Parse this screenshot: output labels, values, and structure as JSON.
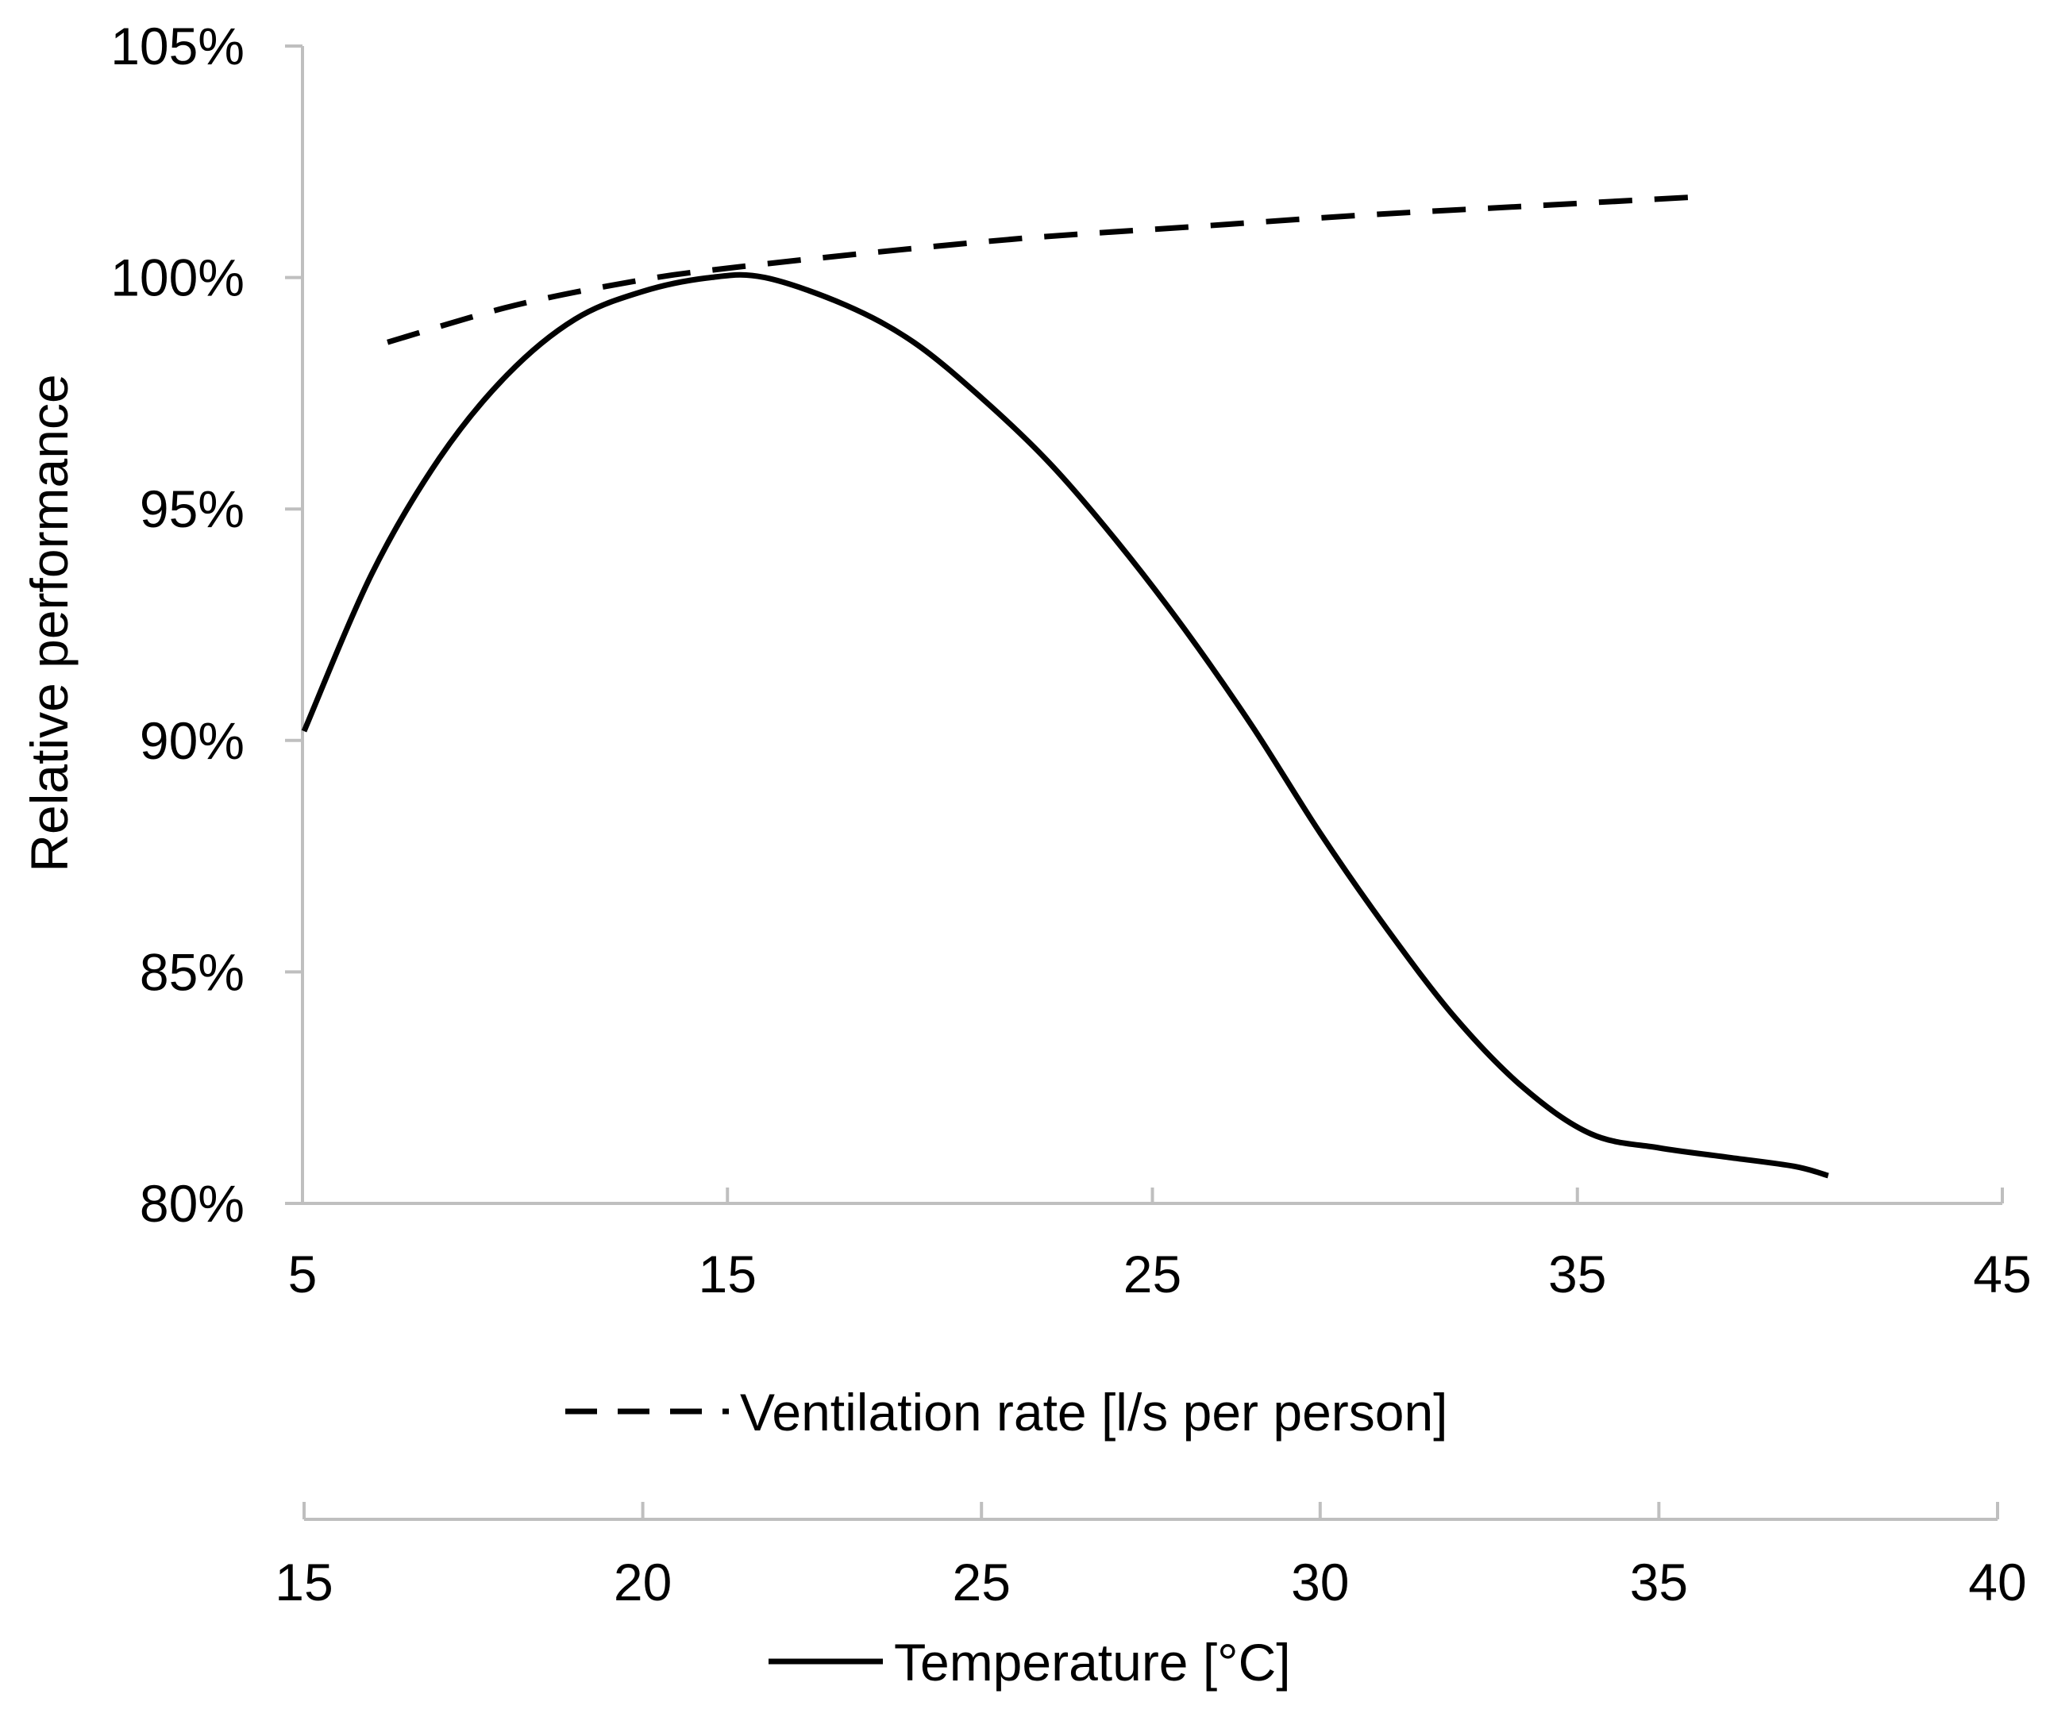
{
  "chart_data": {
    "type": "line",
    "title": "",
    "ylabel": "Relative performance",
    "ylim": [
      80,
      105
    ],
    "y_ticks": [
      80,
      85,
      90,
      95,
      100,
      105
    ],
    "y_tick_labels": [
      "80%",
      "85%",
      "90%",
      "95%",
      "100%",
      "105%"
    ],
    "axes": {
      "ventilation": {
        "label": "Ventilation rate [l/s per person]",
        "range": [
          5,
          45
        ],
        "ticks": [
          5,
          15,
          25,
          35,
          45
        ],
        "tick_labels": [
          "5",
          "15",
          "25",
          "35",
          "45"
        ]
      },
      "temperature": {
        "label": "Temperature [°C]",
        "range": [
          15,
          40
        ],
        "ticks": [
          15,
          20,
          25,
          30,
          35,
          40
        ],
        "tick_labels": [
          "15",
          "20",
          "25",
          "30",
          "35",
          "40"
        ]
      }
    },
    "series": [
      {
        "name": "Ventilation rate [l/s per person]",
        "axis": "ventilation",
        "style": "dashed",
        "x": [
          7,
          10,
          13,
          15,
          18,
          22,
          26,
          30,
          34,
          38
        ],
        "y": [
          98.6,
          99.4,
          99.95,
          100.2,
          100.5,
          100.85,
          101.1,
          101.35,
          101.55,
          101.75
        ]
      },
      {
        "name": "Temperature [°C]",
        "axis": "temperature",
        "style": "solid",
        "x": [
          15,
          16,
          17,
          18,
          19,
          20,
          21,
          21.8,
          23,
          24,
          25,
          26,
          27,
          28,
          29,
          30,
          31,
          32,
          33,
          34,
          35,
          36,
          37,
          37.5
        ],
        "y": [
          90.2,
          93.6,
          96.1,
          97.9,
          99.1,
          99.7,
          100.0,
          100.0,
          99.4,
          98.6,
          97.4,
          96.0,
          94.3,
          92.4,
          90.3,
          88.0,
          85.9,
          84.0,
          82.5,
          81.5,
          81.2,
          81.0,
          80.8,
          80.6
        ]
      }
    ]
  }
}
